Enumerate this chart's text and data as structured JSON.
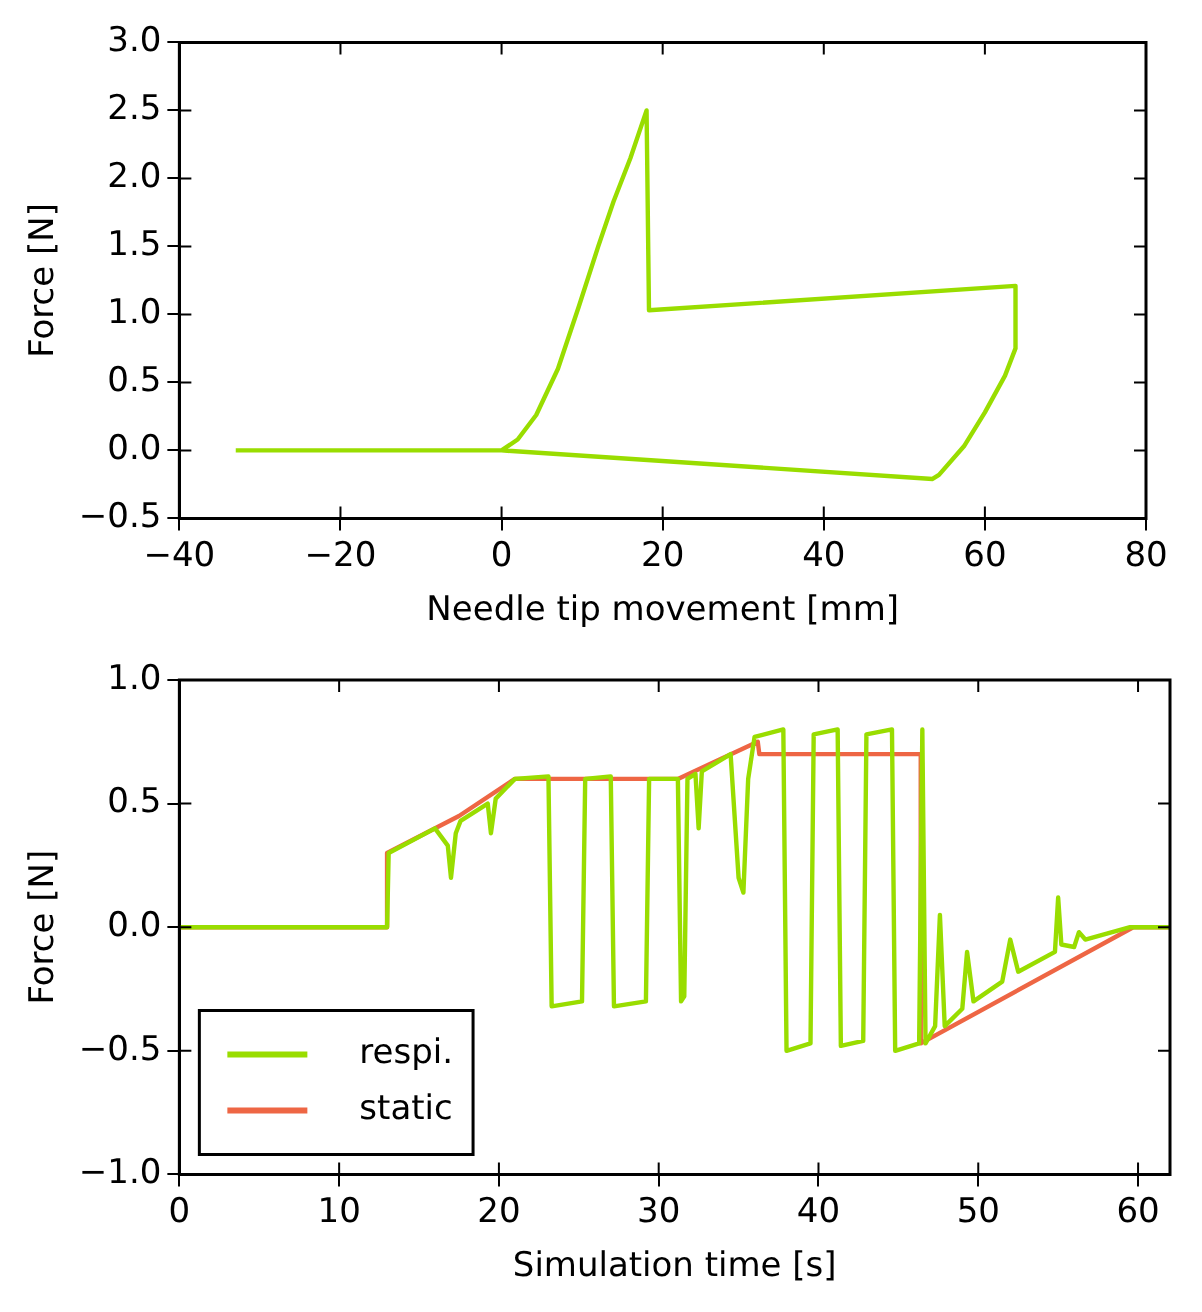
{
  "chart_data": [
    {
      "type": "line",
      "xlabel": "Needle tip movement [mm]",
      "ylabel": "Force [N]",
      "xlim": [
        -40,
        80
      ],
      "xticks": [
        {
          "value": -40,
          "label": "−40"
        },
        {
          "value": -20,
          "label": "−20"
        },
        0,
        20,
        40,
        60,
        80
      ],
      "ylim": [
        -0.5,
        3.0
      ],
      "yticks": [
        {
          "value": -0.5,
          "label": "−0.5"
        },
        {
          "value": 0,
          "label": "0.0"
        },
        {
          "value": 0.5,
          "label": "0.5"
        },
        {
          "value": 1,
          "label": "1.0"
        },
        {
          "value": 1.5,
          "label": "1.5"
        },
        {
          "value": 2,
          "label": "2.0"
        },
        {
          "value": 2.5,
          "label": "2.5"
        },
        {
          "value": 3,
          "label": "3.0"
        }
      ],
      "grid": false,
      "series": [
        {
          "color": "#99dd00",
          "x": [
            -33,
            0,
            2,
            4.3,
            7,
            9.6,
            12,
            13.9,
            16,
            18,
            18.3,
            63.8,
            63.8,
            62.5,
            60,
            57.4,
            54.3,
            53.5,
            0
          ],
          "values": [
            0,
            0,
            0.08,
            0.26,
            0.6,
            1.06,
            1.5,
            1.83,
            2.15,
            2.5,
            1.03,
            1.21,
            0.75,
            0.55,
            0.28,
            0.03,
            -0.18,
            -0.21,
            0
          ]
        }
      ]
    },
    {
      "type": "line",
      "xlabel": "Simulation time [s]",
      "ylabel": "Force [N]",
      "xlim": [
        0,
        62
      ],
      "xticks": [
        0,
        10,
        20,
        30,
        40,
        50,
        60
      ],
      "ylim": [
        -1,
        1
      ],
      "yticks": [
        {
          "value": -1,
          "label": "−1.0"
        },
        {
          "value": -0.5,
          "label": "−0.5"
        },
        {
          "value": 0,
          "label": "0.0"
        },
        {
          "value": 0.5,
          "label": "0.5"
        },
        {
          "value": 1,
          "label": "1.0"
        }
      ],
      "grid": false,
      "legend": "bottom left",
      "series": [
        {
          "name": "respi.",
          "color": "#99dd00",
          "x": [
            0,
            13,
            13.1,
            16,
            16.8,
            17,
            17.3,
            17.6,
            19.3,
            19.5,
            19.8,
            21,
            23.1,
            23.3,
            25.2,
            25.4,
            27.0,
            27.2,
            29.2,
            29.4,
            31.2,
            31.4,
            31.6,
            31.8,
            32.3,
            32.5,
            32.7,
            34.5,
            35.0,
            35.3,
            35.6,
            36.0,
            37.8,
            38.0,
            39.5,
            39.7,
            41.2,
            41.4,
            42.8,
            43.0,
            44.6,
            44.8,
            46.3,
            46.5,
            46.7,
            47.3,
            47.6,
            47.9,
            49.0,
            49.3,
            49.7,
            51.5,
            52.0,
            52.5,
            54.8,
            55.0,
            55.2,
            56.0,
            56.3,
            56.7,
            59.5,
            62
          ],
          "values": [
            0,
            0,
            0.3,
            0.4,
            0.33,
            0.2,
            0.38,
            0.43,
            0.5,
            0.38,
            0.52,
            0.6,
            0.61,
            -0.32,
            -0.3,
            0.6,
            0.61,
            -0.32,
            -0.3,
            0.6,
            0.6,
            -0.3,
            -0.28,
            0.6,
            0.62,
            0.4,
            0.63,
            0.7,
            0.2,
            0.14,
            0.6,
            0.77,
            0.8,
            -0.5,
            -0.47,
            0.78,
            0.8,
            -0.48,
            -0.46,
            0.78,
            0.8,
            -0.5,
            -0.47,
            0.8,
            -0.47,
            -0.4,
            0.05,
            -0.4,
            -0.33,
            -0.1,
            -0.3,
            -0.22,
            -0.05,
            -0.18,
            -0.1,
            0.12,
            -0.07,
            -0.08,
            -0.02,
            -0.05,
            0,
            0
          ]
        },
        {
          "name": "static",
          "color": "#ee6644",
          "x": [
            0,
            13,
            13,
            17.5,
            21,
            31.2,
            36.2,
            36.3,
            46.4,
            46.4,
            59.7,
            62
          ],
          "values": [
            0,
            0,
            0.3,
            0.45,
            0.6,
            0.6,
            0.75,
            0.7,
            0.7,
            -0.47,
            0,
            0
          ]
        }
      ]
    }
  ]
}
